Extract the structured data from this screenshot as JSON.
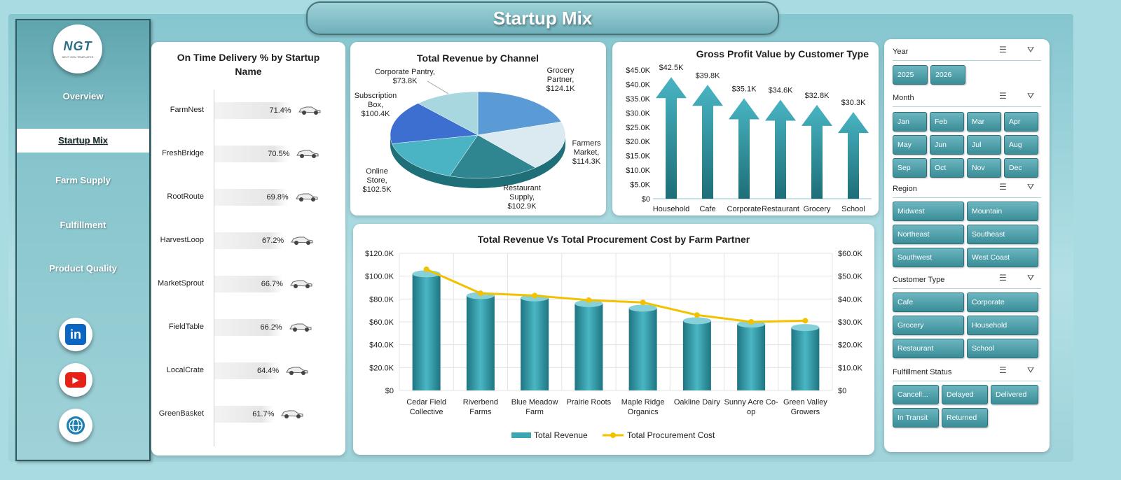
{
  "app_title": "Startup Mix",
  "logo": {
    "text": "NGT",
    "subtext": "NEXT GEN TEMPLATES"
  },
  "nav": [
    {
      "label": "Overview",
      "active": false
    },
    {
      "label": "Startup Mix",
      "active": true
    },
    {
      "label": "Farm Supply",
      "active": false
    },
    {
      "label": "Fulfillment",
      "active": false
    },
    {
      "label": "Product Quality",
      "active": false
    }
  ],
  "social": [
    {
      "name": "linkedin-icon",
      "label": "in",
      "color": "#0a66c2"
    },
    {
      "name": "youtube-icon",
      "label": "▶",
      "color": "#e62117"
    },
    {
      "name": "globe-icon",
      "label": "🌐",
      "color": "#1a7fb5"
    }
  ],
  "ontime": {
    "title": "On Time Delivery % by Startup Name",
    "rows": [
      {
        "name": "FarmNest",
        "value": "71.4%"
      },
      {
        "name": "FreshBridge",
        "value": "70.5%"
      },
      {
        "name": "RootRoute",
        "value": "69.8%"
      },
      {
        "name": "HarvestLoop",
        "value": "67.2%"
      },
      {
        "name": "MarketSprout",
        "value": "66.7%"
      },
      {
        "name": "FieldTable",
        "value": "66.2%"
      },
      {
        "name": "LocalCrate",
        "value": "64.4%"
      },
      {
        "name": "GreenBasket",
        "value": "61.7%"
      }
    ]
  },
  "slicers": {
    "year": {
      "title": "Year",
      "options": [
        "2025",
        "2026"
      ]
    },
    "month": {
      "title": "Month",
      "options": [
        "Jan",
        "Feb",
        "Mar",
        "Apr",
        "May",
        "Jun",
        "Jul",
        "Aug",
        "Sep",
        "Oct",
        "Nov",
        "Dec"
      ]
    },
    "region": {
      "title": "Region",
      "options": [
        "Midwest",
        "Mountain",
        "Northeast",
        "Southeast",
        "Southwest",
        "West Coast"
      ]
    },
    "customer_type": {
      "title": "Customer Type",
      "options": [
        "Cafe",
        "Corporate",
        "Grocery",
        "Household",
        "Restaurant",
        "School"
      ]
    },
    "fulfillment_status": {
      "title": "Fulfillment Status",
      "options": [
        "Cancell...",
        "Delayed",
        "Delivered",
        "In Transit",
        "Returned"
      ]
    }
  },
  "chart_data": [
    {
      "type": "bar",
      "title": "On Time Delivery % by Startup Name",
      "categories": [
        "FarmNest",
        "FreshBridge",
        "RootRoute",
        "HarvestLoop",
        "MarketSprout",
        "FieldTable",
        "LocalCrate",
        "GreenBasket"
      ],
      "values": [
        71.4,
        70.5,
        69.8,
        67.2,
        66.7,
        66.2,
        64.4,
        61.7
      ]
    },
    {
      "type": "pie",
      "title": "Total Revenue by Channel",
      "categories": [
        "Grocery Partner",
        "Farmers Market",
        "Restaurant Supply",
        "Online Store",
        "Subscription Box",
        "Corporate Pantry"
      ],
      "values": [
        124.1,
        114.3,
        102.9,
        102.5,
        100.4,
        73.8
      ],
      "labels": [
        {
          "lines": [
            "Grocery",
            "Partner,",
            "$124.1K"
          ]
        },
        {
          "lines": [
            "Farmers",
            "Market,",
            "$114.3K"
          ]
        },
        {
          "lines": [
            "Restaurant",
            "Supply,",
            "$102.9K"
          ]
        },
        {
          "lines": [
            "Online",
            "Store,",
            "$102.5K"
          ]
        },
        {
          "lines": [
            "Subscription",
            "Box,",
            "$100.4K"
          ]
        },
        {
          "lines": [
            "Corporate Pantry,",
            "$73.8K"
          ]
        }
      ],
      "colors": [
        "#5b9bd5",
        "#dbe9f1",
        "#2f8590",
        "#4ab4c4",
        "#3c6fcf",
        "#a9d7df"
      ]
    },
    {
      "type": "bar",
      "title": "Gross Profit Value by Customer Type",
      "categories": [
        "Household",
        "Cafe",
        "Corporate",
        "Restaurant",
        "Grocery",
        "School"
      ],
      "values": [
        42.5,
        39.8,
        35.1,
        34.6,
        32.8,
        30.3
      ],
      "data_labels": [
        "$42.5K",
        "$39.8K",
        "$35.1K",
        "$34.6K",
        "$32.8K",
        "$30.3K"
      ],
      "y_ticks": [
        "$0",
        "$5.0K",
        "$10.0K",
        "$15.0K",
        "$20.0K",
        "$25.0K",
        "$30.0K",
        "$35.0K",
        "$40.0K",
        "$45.0K"
      ],
      "ylim": [
        0,
        45
      ]
    },
    {
      "type": "bar",
      "title": "Total Revenue Vs Total Procurement Cost by Farm Partner",
      "categories": [
        [
          "Cedar Field",
          "Collective"
        ],
        [
          "Riverbend",
          "Farms"
        ],
        [
          "Blue Meadow",
          "Farm"
        ],
        [
          "Prairie Roots"
        ],
        [
          "Maple Ridge",
          "Organics"
        ],
        [
          "Oakline Dairy"
        ],
        [
          "Sunny Acre Co-",
          "op"
        ],
        [
          "Green Valley",
          "Growers"
        ]
      ],
      "series": [
        {
          "name": "Total Revenue",
          "type": "bar",
          "axis": "left",
          "values": [
            102,
            83,
            81,
            76,
            72,
            61,
            58,
            55
          ],
          "color": "#3aa6b4"
        },
        {
          "name": "Total Procurement Cost",
          "type": "line",
          "axis": "right",
          "values": [
            53,
            42.5,
            41.5,
            39.5,
            38.5,
            33,
            30,
            30.5
          ],
          "color": "#f2c200"
        }
      ],
      "y_left_ticks": [
        "$0",
        "$20.0K",
        "$40.0K",
        "$60.0K",
        "$80.0K",
        "$100.0K",
        "$120.0K"
      ],
      "y_right_ticks": [
        "$0",
        "$10.0K",
        "$20.0K",
        "$30.0K",
        "$40.0K",
        "$50.0K",
        "$60.0K"
      ],
      "ylim_left": [
        0,
        120
      ],
      "ylim_right": [
        0,
        60
      ],
      "legend": "bottom",
      "grid": true
    }
  ]
}
